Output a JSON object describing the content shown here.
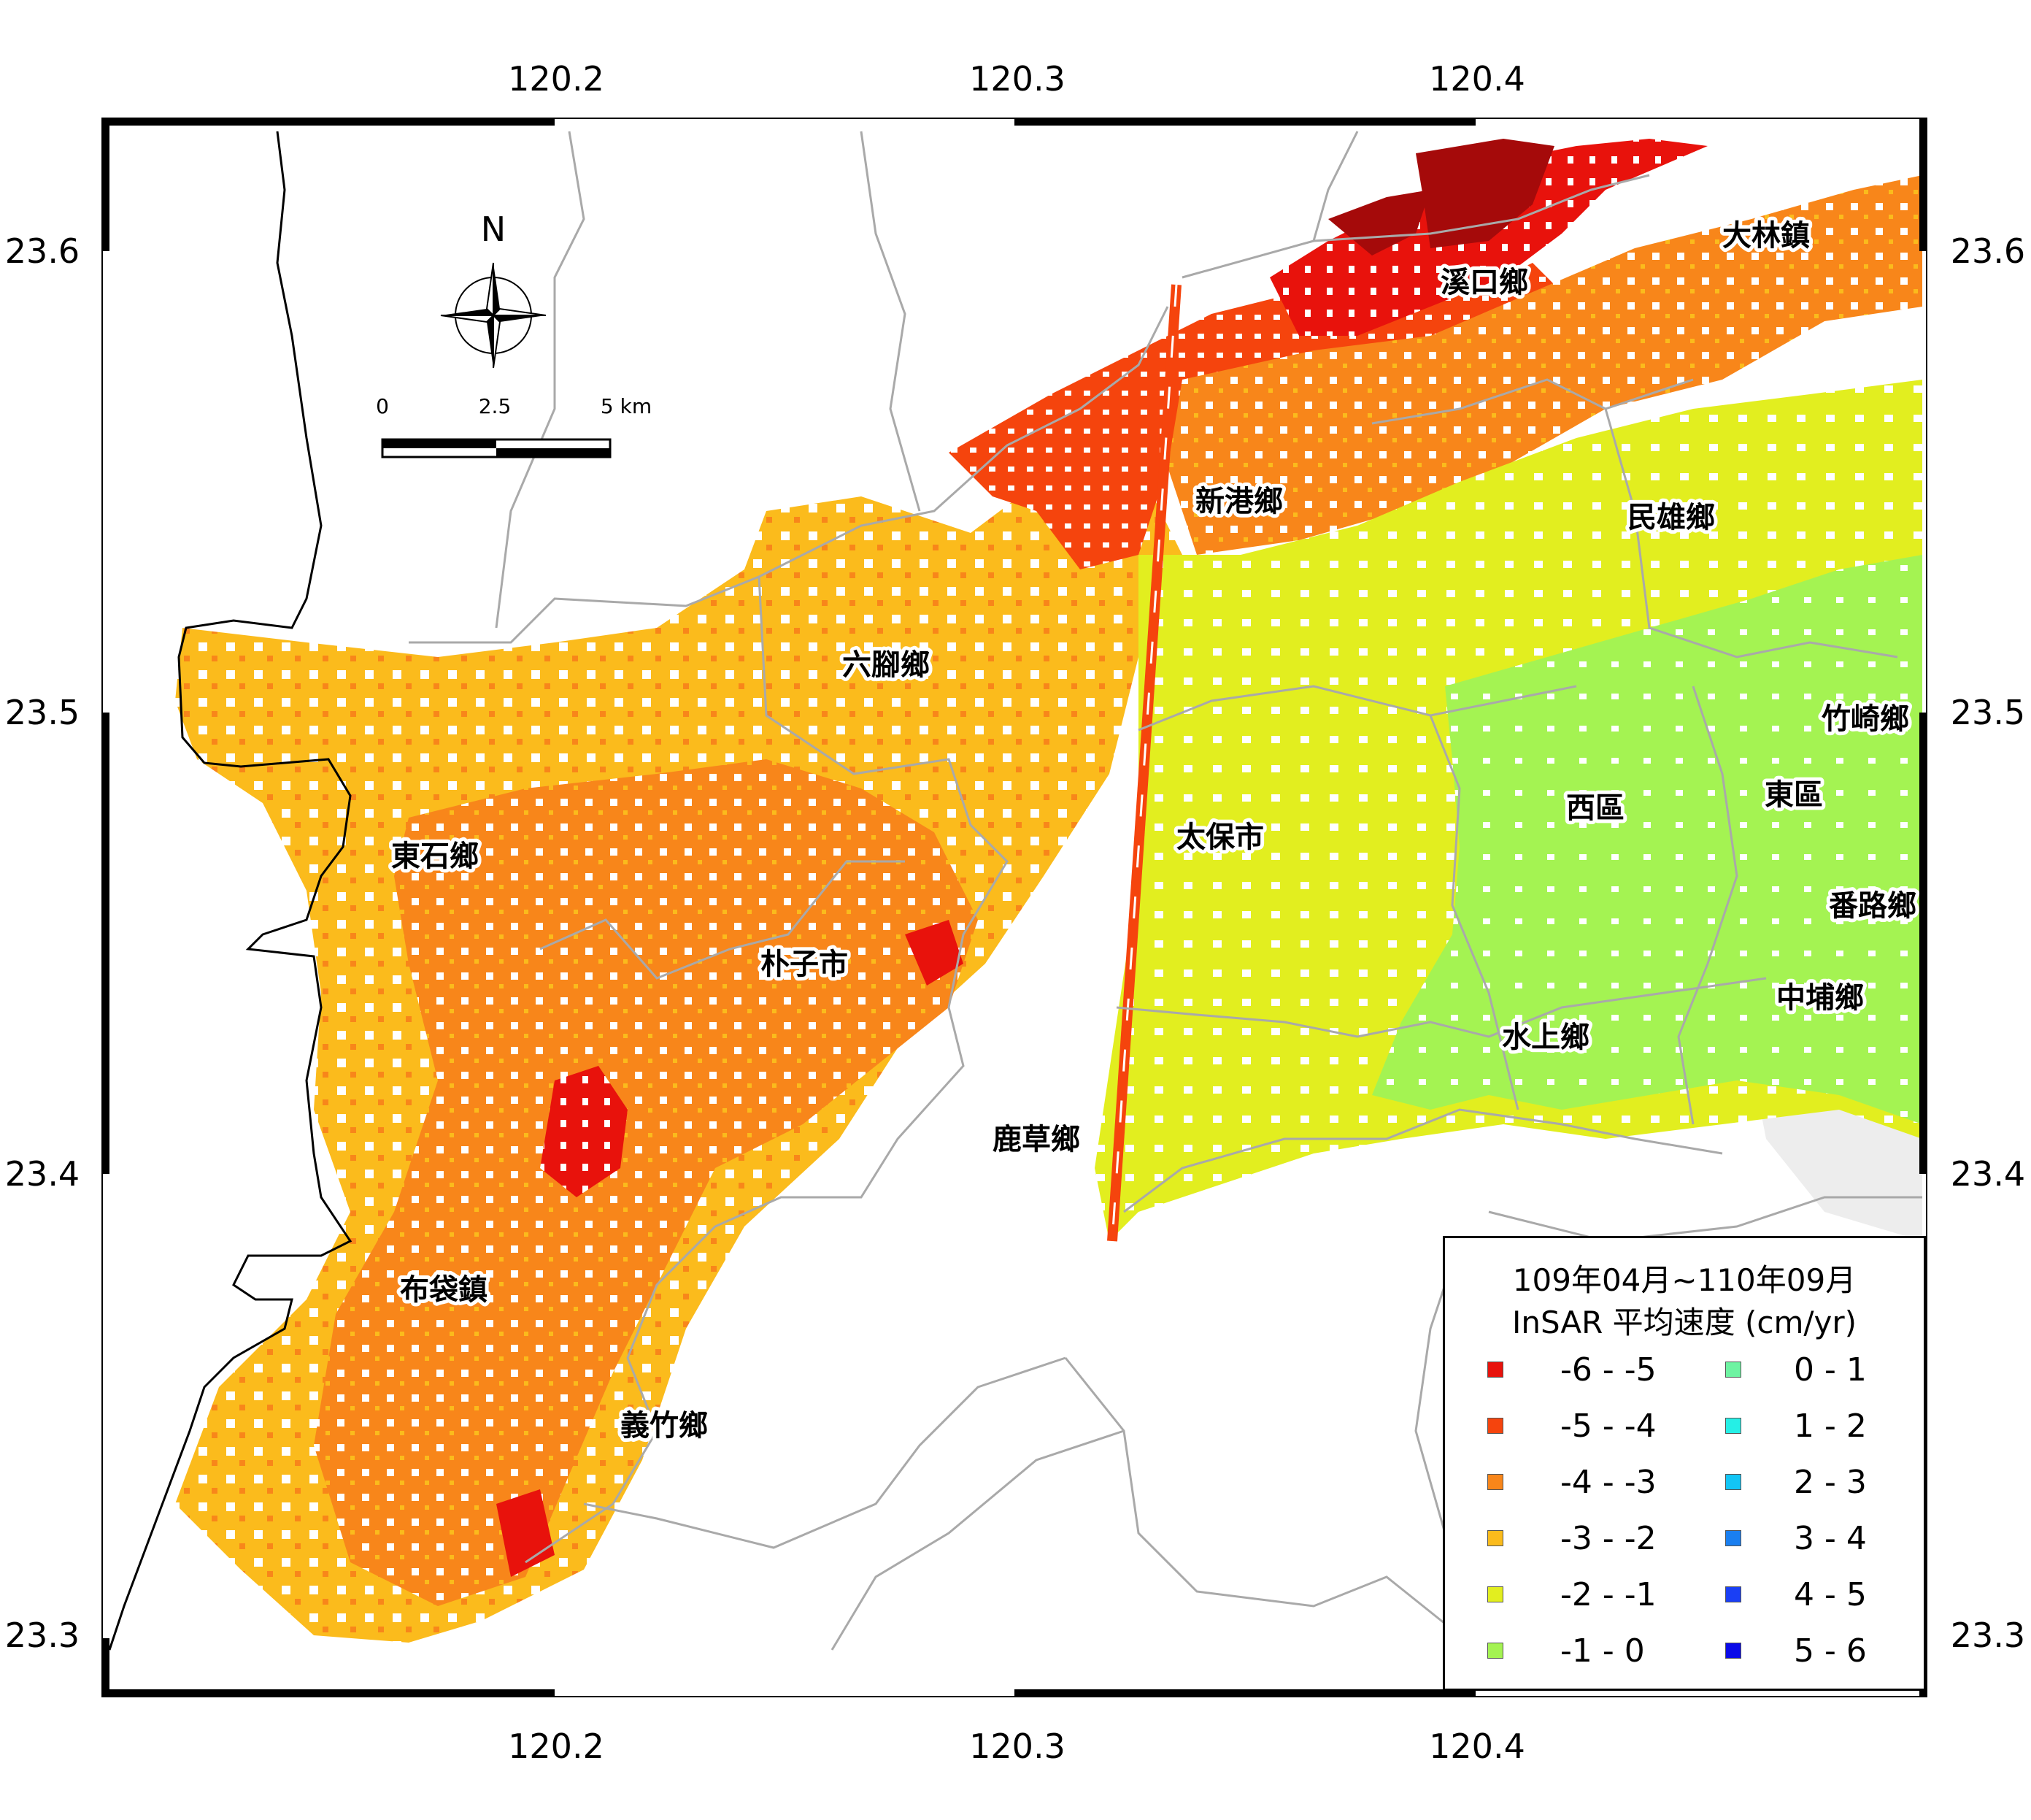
{
  "axes": {
    "lon_ticks": [
      "120.2",
      "120.3",
      "120.4"
    ],
    "lat_ticks": [
      "23.6",
      "23.5",
      "23.4",
      "23.3"
    ]
  },
  "towns": [
    {
      "name": "溪口鄉"
    },
    {
      "name": "大林鎮"
    },
    {
      "name": "新港鄉"
    },
    {
      "name": "民雄鄉"
    },
    {
      "name": "六腳鄉"
    },
    {
      "name": "竹崎鄉"
    },
    {
      "name": "西區"
    },
    {
      "name": "東區"
    },
    {
      "name": "東石鄉"
    },
    {
      "name": "太保市"
    },
    {
      "name": "番路鄉"
    },
    {
      "name": "朴子市"
    },
    {
      "name": "中埔鄉"
    },
    {
      "name": "水上鄉"
    },
    {
      "name": "鹿草鄉"
    },
    {
      "name": "布袋鎮"
    },
    {
      "name": "義竹鄉"
    }
  ],
  "north_arrow": {
    "label": "N",
    "icon": "compass-rose-icon"
  },
  "scale_bar": {
    "labels": [
      "0",
      "2.5",
      "5 km"
    ]
  },
  "legend": {
    "title_line1": "109年04月~110年09月",
    "title_line2": "InSAR 平均速度 (cm/yr)",
    "items": [
      {
        "label": "-6 - -5",
        "color": "#e8120c"
      },
      {
        "label": "-5 - -4",
        "color": "#f5440d"
      },
      {
        "label": "-4 - -3",
        "color": "#f8861a"
      },
      {
        "label": "-3 - -2",
        "color": "#fbbb1c"
      },
      {
        "label": "-2 - -1",
        "color": "#e2ee1f"
      },
      {
        "label": "-1 - 0",
        "color": "#a4f352"
      },
      {
        "label": "0 - 1",
        "color": "#6ef3a2"
      },
      {
        "label": "1 - 2",
        "color": "#25efe6"
      },
      {
        "label": "2 - 3",
        "color": "#12c5f5"
      },
      {
        "label": "3 - 4",
        "color": "#1a7ff0"
      },
      {
        "label": "4 - 5",
        "color": "#1a3ff5"
      },
      {
        "label": "5 - 6",
        "color": "#0a0ae8"
      }
    ]
  },
  "colors": {
    "dark_red": "#a50a0a",
    "boundary": "#a9a9a9",
    "coast": "#000000"
  }
}
